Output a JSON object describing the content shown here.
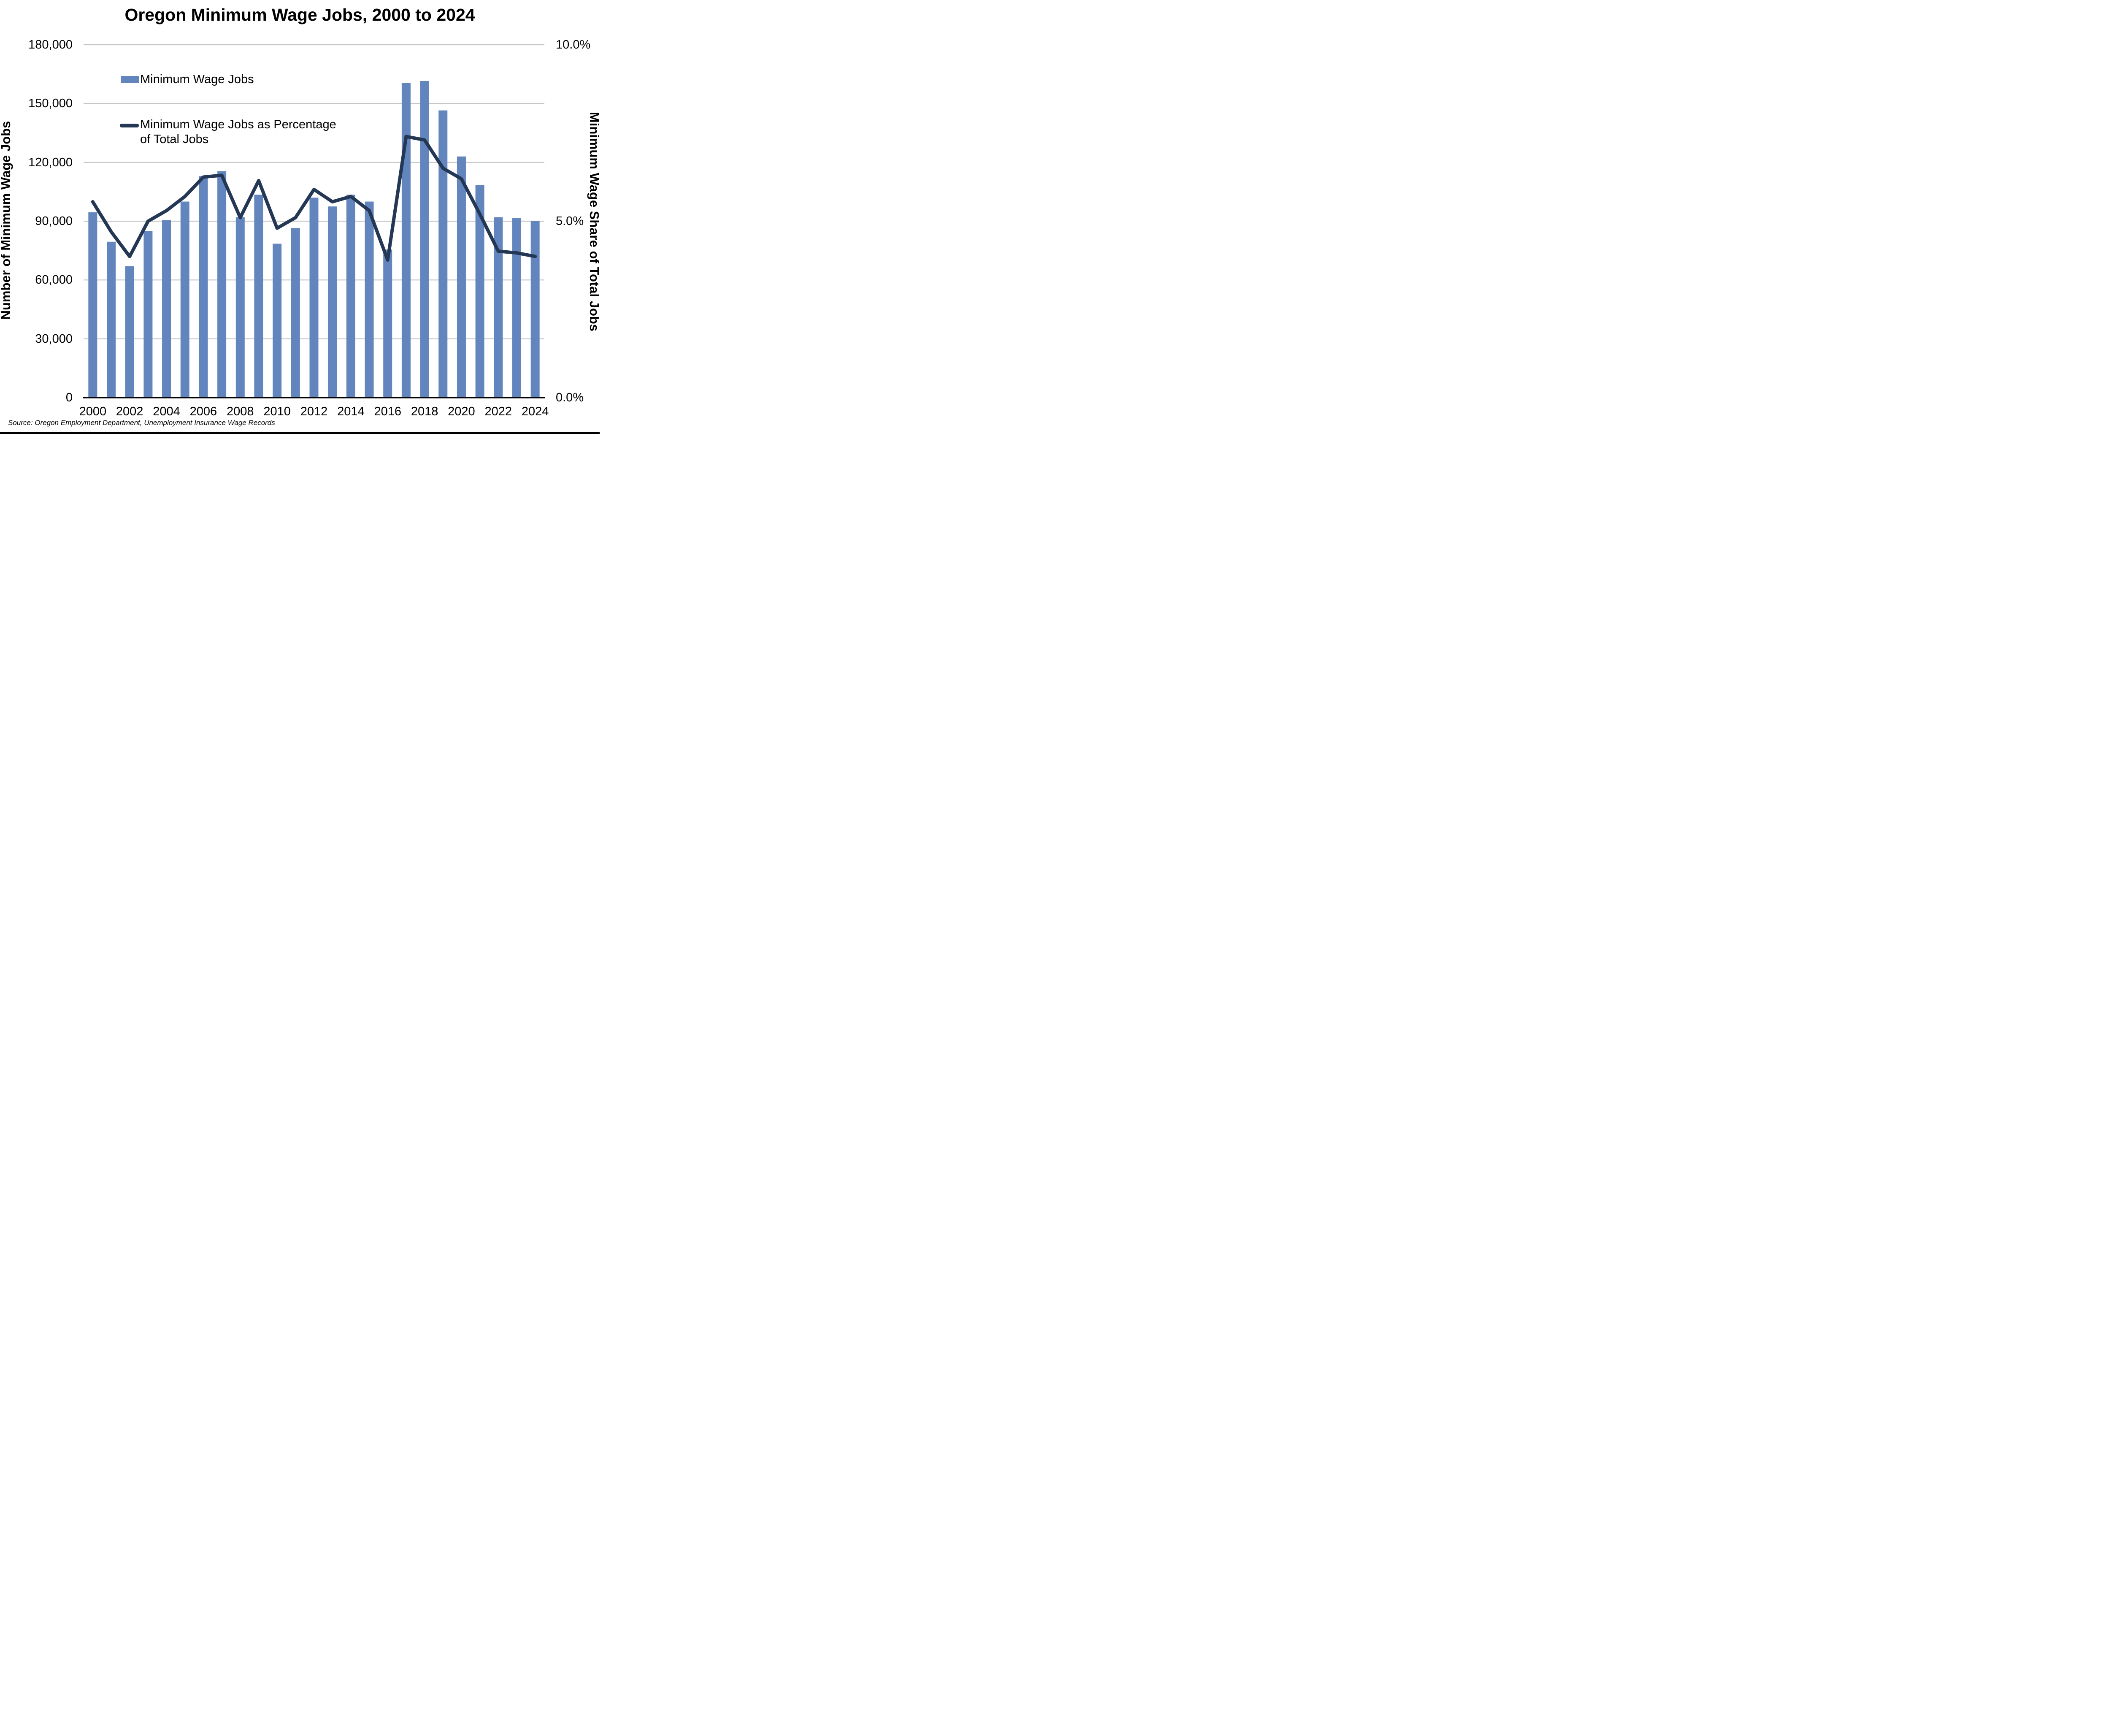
{
  "title": "Oregon Minimum Wage Jobs, 2000 to 2024",
  "source": "Source: Oregon Employment Department, Unemployment Insurance Wage Records",
  "left_axis": {
    "title": "Number of Minimum Wage Jobs",
    "tick_labels": [
      "180,000",
      "150,000",
      "120,000",
      "90,000",
      "60,000",
      "30,000",
      "0"
    ],
    "tick_values": [
      180000,
      150000,
      120000,
      90000,
      60000,
      30000,
      0
    ]
  },
  "right_axis": {
    "title": "Minimum Wage Share of Total Jobs",
    "tick_labels": [
      "10.0%",
      "5.0%",
      "0.0%"
    ],
    "tick_values": [
      10,
      5,
      0
    ]
  },
  "legend": {
    "items": [
      {
        "label": "Minimum Wage Jobs",
        "marker": "bar-swatch",
        "color": "#6285BD"
      },
      {
        "label": "Minimum Wage Jobs as Percentage of Total Jobs",
        "marker": "line-swatch",
        "color": "#243754"
      }
    ]
  },
  "colors": {
    "bar": "#6285BD",
    "line": "#243754",
    "gridline": "#C3C3C3",
    "axis_line": "#000000",
    "background": "#FFFFFF"
  },
  "chart_data": {
    "type": "combo-bar-line",
    "categories": [
      2000,
      2001,
      2002,
      2003,
      2004,
      2005,
      2006,
      2007,
      2008,
      2009,
      2010,
      2011,
      2012,
      2013,
      2014,
      2015,
      2016,
      2017,
      2018,
      2019,
      2020,
      2021,
      2022,
      2023,
      2024
    ],
    "x_tick_labels": [
      "2000",
      "2002",
      "2004",
      "2006",
      "2008",
      "2010",
      "2012",
      "2014",
      "2016",
      "2018",
      "2020",
      "2022",
      "2024"
    ],
    "series": [
      {
        "name": "Minimum Wage Jobs",
        "type": "bar",
        "axis": "left",
        "color": "#6285BD",
        "values": [
          94500,
          79500,
          67000,
          85000,
          90500,
          100000,
          113000,
          115500,
          92000,
          103500,
          78500,
          86500,
          102000,
          97500,
          103500,
          100000,
          75500,
          160500,
          161500,
          146500,
          123000,
          108500,
          92000,
          91500,
          90000
        ]
      },
      {
        "name": "Minimum Wage Jobs as Percentage of Total Jobs",
        "type": "line",
        "axis": "right",
        "color": "#243754",
        "values": [
          5.55,
          4.7,
          4.0,
          5.0,
          5.3,
          5.7,
          6.25,
          6.3,
          5.1,
          6.15,
          4.8,
          5.1,
          5.9,
          5.55,
          5.7,
          5.3,
          3.9,
          7.4,
          7.3,
          6.5,
          6.2,
          5.2,
          4.15,
          4.1,
          4.0
        ]
      }
    ],
    "title": "Oregon Minimum Wage Jobs, 2000 to 2024",
    "xlabel": "",
    "ylabel_left": "Number of Minimum Wage Jobs",
    "ylabel_right": "Minimum Wage Share of Total Jobs",
    "left_ylim": [
      0,
      180000
    ],
    "left_ytick_step": 30000,
    "right_ylim": [
      0,
      10
    ],
    "grid": true,
    "legend_position": "inside-top-left"
  }
}
